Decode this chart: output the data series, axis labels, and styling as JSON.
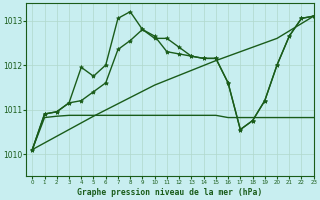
{
  "title": "",
  "xlabel": "Graphe pression niveau de la mer (hPa)",
  "ylabel": "",
  "bg_color": "#c8eef0",
  "line_color": "#1a5c1a",
  "grid_color": "#b0d8cc",
  "xlim": [
    -0.5,
    23
  ],
  "ylim": [
    1009.5,
    1013.4
  ],
  "yticks": [
    1010,
    1011,
    1012,
    1013
  ],
  "xticks": [
    0,
    1,
    2,
    3,
    4,
    5,
    6,
    7,
    8,
    9,
    10,
    11,
    12,
    13,
    14,
    15,
    16,
    17,
    18,
    19,
    20,
    21,
    22,
    23
  ],
  "series1_x": [
    0,
    1,
    2,
    3,
    4,
    5,
    6,
    7,
    8,
    9,
    10,
    11,
    12,
    13,
    14,
    15,
    16,
    17,
    18,
    19,
    20,
    21,
    22,
    23
  ],
  "series1_y": [
    1010.1,
    1010.9,
    1010.95,
    1011.15,
    1011.95,
    1011.75,
    1012.0,
    1013.05,
    1013.2,
    1012.8,
    1012.6,
    1012.6,
    1012.4,
    1012.2,
    1012.15,
    1012.15,
    1011.6,
    1010.55,
    1010.75,
    1011.2,
    1012.0,
    1012.65,
    1013.05,
    1013.1
  ],
  "series2_x": [
    0,
    1,
    2,
    3,
    4,
    5,
    6,
    7,
    8,
    9,
    10,
    11,
    12,
    13,
    14,
    15,
    16,
    17,
    18,
    19,
    20,
    21,
    22,
    23
  ],
  "series2_y": [
    1010.1,
    1010.9,
    1010.95,
    1011.15,
    1011.2,
    1011.4,
    1011.6,
    1012.35,
    1012.55,
    1012.8,
    1012.65,
    1012.3,
    1012.25,
    1012.2,
    1012.15,
    1012.15,
    1011.6,
    1010.55,
    1010.75,
    1011.2,
    1012.0,
    1012.65,
    1013.05,
    1013.1
  ],
  "series3_x": [
    0,
    5,
    10,
    15,
    20,
    23
  ],
  "series3_y": [
    1010.1,
    1010.85,
    1011.55,
    1012.1,
    1012.6,
    1013.1
  ],
  "series4_x": [
    0,
    1,
    2,
    3,
    4,
    5,
    6,
    7,
    8,
    9,
    10,
    11,
    12,
    13,
    14,
    15,
    16,
    17,
    18,
    19,
    20,
    21,
    22,
    23
  ],
  "series4_y": [
    1010.1,
    1010.82,
    1010.85,
    1010.87,
    1010.87,
    1010.87,
    1010.87,
    1010.87,
    1010.87,
    1010.87,
    1010.87,
    1010.87,
    1010.87,
    1010.87,
    1010.87,
    1010.87,
    1010.82,
    1010.82,
    1010.82,
    1010.82,
    1010.82,
    1010.82,
    1010.82,
    1010.82
  ]
}
